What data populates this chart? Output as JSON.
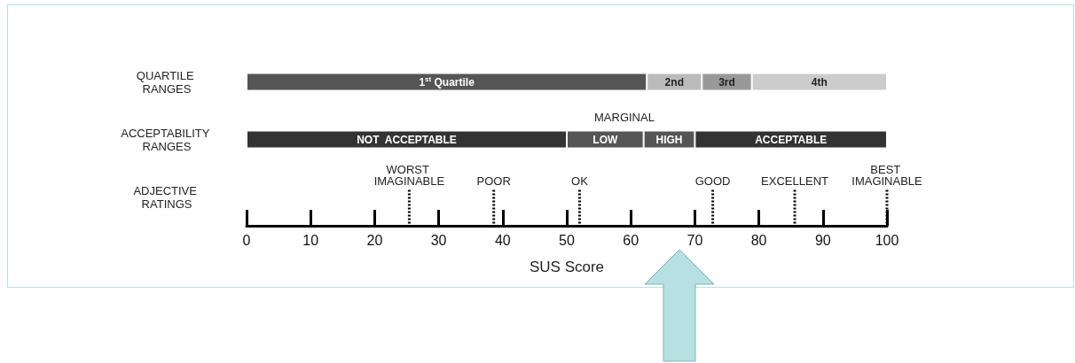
{
  "chart_data": {
    "type": "bar",
    "orientation": "horizontal",
    "stacked": true,
    "categories": [
      "QUARTILE RANGES",
      "ACCEPTABILITY RANGES",
      "ADJECTIVE RATINGS"
    ],
    "series": [
      {
        "name": "1$^{st}$ Quartile",
        "color": "#555555",
        "values": [
          62.5,
          null,
          null
        ]
      },
      {
        "name": "2nd",
        "color": "#bbbbbb",
        "values": [
          8.6,
          null,
          null
        ]
      },
      {
        "name": "3rd",
        "color": "#999999",
        "values": [
          7.8,
          null,
          null
        ]
      },
      {
        "name": "4th",
        "color": "#cccccc",
        "values": [
          21.1,
          null,
          null
        ]
      },
      {
        "name": "NOT  ACCEPTABLE",
        "color": "#333333",
        "values": [
          null,
          50,
          null
        ]
      },
      {
        "name": "LOW",
        "color": "#555555",
        "values": [
          null,
          12,
          null
        ]
      },
      {
        "name": "HIGH",
        "color": "#555555",
        "values": [
          null,
          8,
          null
        ]
      },
      {
        "name": "ACCEPTABLE",
        "color": "#333333",
        "values": [
          null,
          30,
          null
        ]
      }
    ],
    "annotations": [
      "MARGINAL"
    ],
    "ref_lines": [
      {
        "axis": "x",
        "value": 25.4,
        "label": "WORST IMAGINABLE",
        "line_style": "dotted"
      },
      {
        "axis": "x",
        "value": 38.6,
        "label": "POOR",
        "line_style": "dotted"
      },
      {
        "axis": "x",
        "value": 52,
        "label": "OK",
        "line_style": "dotted"
      },
      {
        "axis": "x",
        "value": 72.8,
        "label": "GOOD",
        "line_style": "dotted"
      },
      {
        "axis": "x",
        "value": 85.6,
        "label": "EXCELLENT",
        "line_style": "dotted"
      },
      {
        "axis": "x",
        "value": 100,
        "label": "BEST IMAGINABLE",
        "line_style": "dotted"
      }
    ],
    "xlabel": "SUS Score",
    "xlim": [
      0,
      100
    ],
    "xticks": [
      0,
      10,
      20,
      30,
      40,
      50,
      60,
      70,
      80,
      90,
      100
    ],
    "grid": false,
    "legend": false
  }
}
